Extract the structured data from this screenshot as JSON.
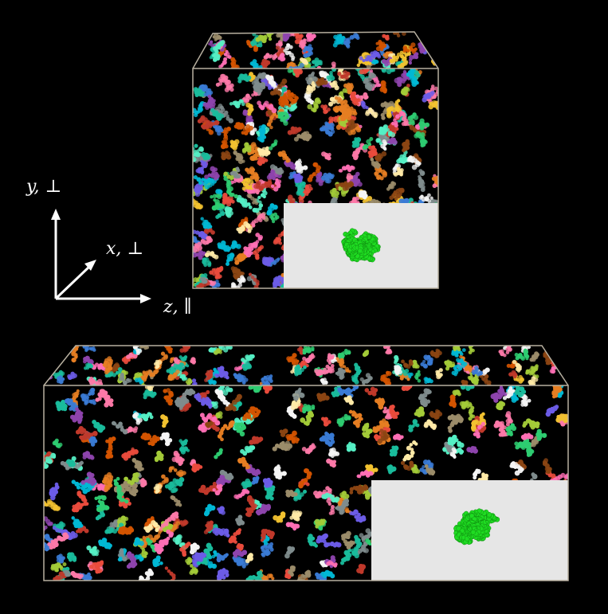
{
  "axes": {
    "y_label": "y, ⊥",
    "x_label": "x, ⊥",
    "z_label": "z, ∥"
  },
  "colors": {
    "background": "#000000",
    "inset_background": "#e6e6e6",
    "highlight_chain": "#1fdc22",
    "box_edge": "#b8b0a0",
    "palette": [
      "#e94b3c",
      "#3a7bd5",
      "#f2c230",
      "#8e44ad",
      "#2ecc71",
      "#e67e22",
      "#1abc9c",
      "#ff6fb5",
      "#9b8c6a",
      "#6c5ce7",
      "#00b8d4",
      "#c0392b",
      "#a3cb38",
      "#fd79a8",
      "#d35400",
      "#f5f5f5",
      "#7f8c8d",
      "#8b4513",
      "#55efc4",
      "#ffeaa7"
    ]
  },
  "boxes": [
    {
      "name": "cubic-simulation-box",
      "inset": "highlighted-chain-small"
    },
    {
      "name": "elongated-simulation-box",
      "inset": "highlighted-chain-large"
    }
  ]
}
